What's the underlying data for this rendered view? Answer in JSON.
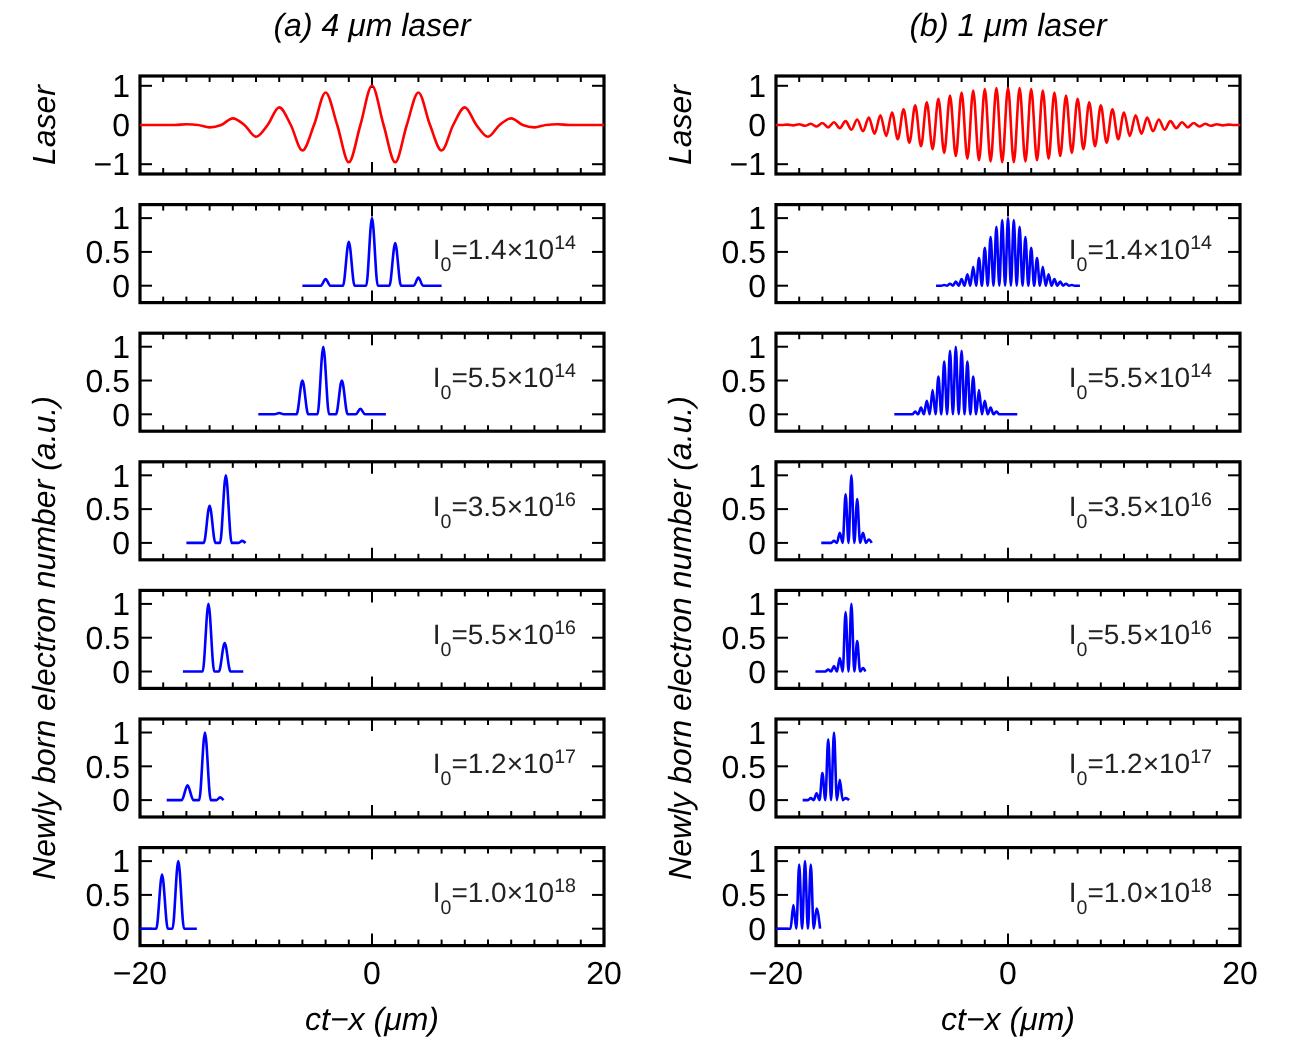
{
  "chart_data": [
    {
      "type": "line",
      "title": "(a) 4 μm laser",
      "ylabel": "Laser",
      "tick_labels": "y",
      "xlim": [
        -20,
        20
      ],
      "ylim": [
        -1.25,
        1.25
      ],
      "yticks": [
        -1,
        0,
        1
      ],
      "xticks": [
        -20,
        {
          "value": -18,
          "label": null
        },
        {
          "value": -16,
          "label": null
        },
        {
          "value": -14,
          "label": null
        },
        {
          "value": -12,
          "label": null
        },
        {
          "value": -10,
          "label": null
        },
        {
          "value": -8,
          "label": null
        },
        {
          "value": -6,
          "label": null
        },
        {
          "value": -4,
          "label": null
        },
        {
          "value": -2,
          "label": null
        },
        0,
        {
          "value": 2,
          "label": null
        },
        {
          "value": 4,
          "label": null
        },
        {
          "value": 6,
          "label": null
        },
        {
          "value": 8,
          "label": null
        },
        {
          "value": 10,
          "label": null
        },
        {
          "value": 12,
          "label": null
        },
        {
          "value": 14,
          "label": null
        },
        {
          "value": 16,
          "label": null
        },
        {
          "value": 18,
          "label": null
        },
        20
      ],
      "series": [
        {
          "color": "#ff0000",
          "x": [
            -20,
            -19,
            -18,
            -17,
            -16,
            -15,
            -14,
            -13,
            -12,
            -11,
            -10,
            -9,
            -8,
            -7,
            -6,
            -5,
            -4,
            -3,
            -2,
            -1,
            0,
            1,
            2,
            3,
            4,
            5,
            6,
            7,
            8,
            9,
            10,
            11,
            12,
            13,
            14,
            15,
            16,
            17,
            18,
            19,
            20
          ],
          "values": [
            0,
            0,
            0,
            0,
            0.02,
            0,
            -0.06,
            0,
            0.17,
            0,
            -0.3,
            0,
            0.45,
            0,
            -0.65,
            0,
            0.83,
            0,
            -0.95,
            0,
            1,
            0,
            -0.95,
            0,
            0.83,
            0,
            -0.65,
            0,
            0.45,
            0,
            -0.3,
            0,
            0.17,
            0,
            -0.06,
            0,
            0.02,
            0,
            0,
            0,
            0
          ]
        }
      ]
    },
    {
      "type": "line",
      "tick_labels": "y",
      "annotations": [
        "I$_{0}$=1.4×10$^{14}$"
      ],
      "xlim": [
        -20,
        20
      ],
      "ylim": [
        -0.25,
        1.2
      ],
      "yticks": [
        0,
        0.5,
        1
      ],
      "xticks": [
        -20,
        {
          "value": -18,
          "label": null
        },
        {
          "value": -16,
          "label": null
        },
        {
          "value": -14,
          "label": null
        },
        {
          "value": -12,
          "label": null
        },
        {
          "value": -10,
          "label": null
        },
        {
          "value": -8,
          "label": null
        },
        {
          "value": -6,
          "label": null
        },
        {
          "value": -4,
          "label": null
        },
        {
          "value": -2,
          "label": null
        },
        0,
        {
          "value": 2,
          "label": null
        },
        {
          "value": 4,
          "label": null
        },
        {
          "value": 6,
          "label": null
        },
        {
          "value": 8,
          "label": null
        },
        {
          "value": 10,
          "label": null
        },
        {
          "value": 12,
          "label": null
        },
        {
          "value": 14,
          "label": null
        },
        {
          "value": 16,
          "label": null
        },
        {
          "value": 18,
          "label": null
        },
        20
      ],
      "series": [
        {
          "color": "#0000ff",
          "x": [
            -6,
            -4.4,
            -4,
            -3.6,
            -2.5,
            -2,
            -1.5,
            -0.5,
            0,
            0.5,
            1.5,
            2,
            2.5,
            3.6,
            4,
            4.4,
            6
          ],
          "values": [
            0,
            0,
            0.1,
            0,
            0,
            0.65,
            0,
            0,
            1,
            0,
            0,
            0.63,
            0,
            0,
            0.12,
            0,
            0
          ]
        }
      ]
    },
    {
      "type": "line",
      "tick_labels": "y",
      "annotations": [
        "I$_{0}$=5.5×10$^{14}$"
      ],
      "xlim": [
        -20,
        20
      ],
      "ylim": [
        -0.25,
        1.2
      ],
      "yticks": [
        0,
        0.5,
        1
      ],
      "xticks": [
        -20,
        {
          "value": -18,
          "label": null
        },
        {
          "value": -16,
          "label": null
        },
        {
          "value": -14,
          "label": null
        },
        {
          "value": -12,
          "label": null
        },
        {
          "value": -10,
          "label": null
        },
        {
          "value": -8,
          "label": null
        },
        {
          "value": -6,
          "label": null
        },
        {
          "value": -4,
          "label": null
        },
        {
          "value": -2,
          "label": null
        },
        0,
        {
          "value": 2,
          "label": null
        },
        {
          "value": 4,
          "label": null
        },
        {
          "value": 6,
          "label": null
        },
        {
          "value": 8,
          "label": null
        },
        {
          "value": 10,
          "label": null
        },
        {
          "value": 12,
          "label": null
        },
        {
          "value": 14,
          "label": null
        },
        {
          "value": 16,
          "label": null
        },
        {
          "value": 18,
          "label": null
        },
        20
      ],
      "series": [
        {
          "color": "#0000ff",
          "x": [
            -9.8,
            -8.4,
            -8,
            -7.6,
            -6.5,
            -6,
            -5.5,
            -4.7,
            -4.2,
            -3.7,
            -3.1,
            -2.6,
            -2.1,
            -1.4,
            -1,
            -0.6,
            1.2
          ],
          "values": [
            0,
            0,
            0.02,
            0,
            0,
            0.5,
            0,
            0,
            1,
            0,
            0,
            0.5,
            0,
            0,
            0.08,
            0,
            0
          ]
        }
      ]
    },
    {
      "type": "line",
      "tick_labels": "y",
      "ylabel": "Newly born electron number (a.u.)",
      "annotations": [
        "I$_{0}$=3.5×10$^{16}$"
      ],
      "xlim": [
        -20,
        20
      ],
      "ylim": [
        -0.25,
        1.2
      ],
      "yticks": [
        0,
        0.5,
        1
      ],
      "xticks": [
        -20,
        {
          "value": -18,
          "label": null
        },
        {
          "value": -16,
          "label": null
        },
        {
          "value": -14,
          "label": null
        },
        {
          "value": -12,
          "label": null
        },
        {
          "value": -10,
          "label": null
        },
        {
          "value": -8,
          "label": null
        },
        {
          "value": -6,
          "label": null
        },
        {
          "value": -4,
          "label": null
        },
        {
          "value": -2,
          "label": null
        },
        0,
        {
          "value": 2,
          "label": null
        },
        {
          "value": 4,
          "label": null
        },
        {
          "value": 6,
          "label": null
        },
        {
          "value": 8,
          "label": null
        },
        {
          "value": 10,
          "label": null
        },
        {
          "value": 12,
          "label": null
        },
        {
          "value": 14,
          "label": null
        },
        {
          "value": 16,
          "label": null
        },
        {
          "value": 18,
          "label": null
        },
        20
      ],
      "series": [
        {
          "color": "#0000ff",
          "x": [
            -16,
            -14.5,
            -14,
            -13.5,
            -13.1,
            -12.6,
            -12.1,
            -11.5,
            -11.2,
            -10.9
          ],
          "values": [
            0,
            0,
            0.55,
            0,
            0,
            1,
            0,
            0,
            0.03,
            0
          ]
        }
      ]
    },
    {
      "type": "line",
      "tick_labels": "y",
      "annotations": [
        "I$_{0}$=5.5×10$^{16}$"
      ],
      "xlim": [
        -20,
        20
      ],
      "ylim": [
        -0.25,
        1.2
      ],
      "yticks": [
        0,
        0.5,
        1
      ],
      "xticks": [
        -20,
        {
          "value": -18,
          "label": null
        },
        {
          "value": -16,
          "label": null
        },
        {
          "value": -14,
          "label": null
        },
        {
          "value": -12,
          "label": null
        },
        {
          "value": -10,
          "label": null
        },
        {
          "value": -8,
          "label": null
        },
        {
          "value": -6,
          "label": null
        },
        {
          "value": -4,
          "label": null
        },
        {
          "value": -2,
          "label": null
        },
        0,
        {
          "value": 2,
          "label": null
        },
        {
          "value": 4,
          "label": null
        },
        {
          "value": 6,
          "label": null
        },
        {
          "value": 8,
          "label": null
        },
        {
          "value": 10,
          "label": null
        },
        {
          "value": 12,
          "label": null
        },
        {
          "value": 14,
          "label": null
        },
        {
          "value": 16,
          "label": null
        },
        {
          "value": 18,
          "label": null
        },
        20
      ],
      "series": [
        {
          "color": "#0000ff",
          "x": [
            -16.3,
            -14.6,
            -14.1,
            -13.6,
            -13.2,
            -12.7,
            -12.2,
            -11.1
          ],
          "values": [
            0,
            0,
            1,
            0,
            0,
            0.42,
            0,
            0
          ]
        }
      ]
    },
    {
      "type": "line",
      "tick_labels": "y",
      "annotations": [
        "I$_{0}$=1.2×10$^{17}$"
      ],
      "xlim": [
        -20,
        20
      ],
      "ylim": [
        -0.25,
        1.2
      ],
      "yticks": [
        0,
        0.5,
        1
      ],
      "xticks": [
        -20,
        {
          "value": -18,
          "label": null
        },
        {
          "value": -16,
          "label": null
        },
        {
          "value": -14,
          "label": null
        },
        {
          "value": -12,
          "label": null
        },
        {
          "value": -10,
          "label": null
        },
        {
          "value": -8,
          "label": null
        },
        {
          "value": -6,
          "label": null
        },
        {
          "value": -4,
          "label": null
        },
        {
          "value": -2,
          "label": null
        },
        0,
        {
          "value": 2,
          "label": null
        },
        {
          "value": 4,
          "label": null
        },
        {
          "value": 6,
          "label": null
        },
        {
          "value": 8,
          "label": null
        },
        {
          "value": 10,
          "label": null
        },
        {
          "value": 12,
          "label": null
        },
        {
          "value": 14,
          "label": null
        },
        {
          "value": 16,
          "label": null
        },
        {
          "value": 18,
          "label": null
        },
        20
      ],
      "series": [
        {
          "color": "#0000ff",
          "x": [
            -17.7,
            -16.4,
            -15.9,
            -15.4,
            -14.9,
            -14.4,
            -13.9,
            -13.4,
            -13.1,
            -12.8
          ],
          "values": [
            0,
            0,
            0.22,
            0,
            0,
            1,
            0,
            0,
            0.04,
            0
          ]
        }
      ]
    },
    {
      "type": "line",
      "xlabel": "ct−x (μm)",
      "annotations": [
        "I$_{0}$=1.0×10$^{18}$"
      ],
      "xlim": [
        -20,
        20
      ],
      "ylim": [
        -0.25,
        1.2
      ],
      "yticks": [
        0,
        0.5,
        1
      ],
      "xticks": [
        -20,
        {
          "value": -18,
          "label": null
        },
        {
          "value": -16,
          "label": null
        },
        {
          "value": -14,
          "label": null
        },
        {
          "value": -12,
          "label": null
        },
        {
          "value": -10,
          "label": null
        },
        {
          "value": -8,
          "label": null
        },
        {
          "value": -6,
          "label": null
        },
        {
          "value": -4,
          "label": null
        },
        {
          "value": -2,
          "label": null
        },
        0,
        {
          "value": 2,
          "label": null
        },
        {
          "value": 4,
          "label": null
        },
        {
          "value": 6,
          "label": null
        },
        {
          "value": 8,
          "label": null
        },
        {
          "value": 10,
          "label": null
        },
        {
          "value": 12,
          "label": null
        },
        {
          "value": 14,
          "label": null
        },
        {
          "value": 16,
          "label": null
        },
        {
          "value": 18,
          "label": null
        },
        20
      ],
      "series": [
        {
          "color": "#0000ff",
          "x": [
            -20,
            -18.6,
            -18.1,
            -17.6,
            -17.2,
            -16.7,
            -16.2,
            -15.1
          ],
          "values": [
            0,
            0,
            0.8,
            0,
            0,
            1,
            0,
            0
          ]
        }
      ]
    },
    {
      "type": "line",
      "title": "(b) 1 μm laser",
      "ylabel": "Laser",
      "tick_labels": "y",
      "xlim": [
        -20,
        20
      ],
      "ylim": [
        -1.25,
        1.25
      ],
      "yticks": [
        -1,
        0,
        1
      ],
      "xticks": [
        -20,
        {
          "value": -18,
          "label": null
        },
        {
          "value": -16,
          "label": null
        },
        {
          "value": -14,
          "label": null
        },
        {
          "value": -12,
          "label": null
        },
        {
          "value": -10,
          "label": null
        },
        {
          "value": -8,
          "label": null
        },
        {
          "value": -6,
          "label": null
        },
        {
          "value": -4,
          "label": null
        },
        {
          "value": -2,
          "label": null
        },
        0,
        {
          "value": 2,
          "label": null
        },
        {
          "value": 4,
          "label": null
        },
        {
          "value": 6,
          "label": null
        },
        {
          "value": 8,
          "label": null
        },
        {
          "value": 10,
          "label": null
        },
        {
          "value": 12,
          "label": null
        },
        {
          "value": 14,
          "label": null
        },
        {
          "value": 16,
          "label": null
        },
        {
          "value": 18,
          "label": null
        },
        20
      ],
      "series": [
        {
          "color": "#ff0000",
          "x": [
            -20,
            -19.5,
            -19,
            -18.5,
            -18,
            -17.5,
            -17,
            -16.5,
            -16,
            -15.5,
            -15,
            -14.5,
            -14,
            -13.5,
            -13,
            -12.5,
            -12,
            -11.5,
            -11,
            -10.5,
            -10,
            -9.5,
            -9,
            -8.5,
            -8,
            -7.5,
            -7,
            -6.5,
            -6,
            -5.5,
            -5,
            -4.5,
            -4,
            -3.5,
            -3,
            -2.5,
            -2,
            -1.5,
            -1,
            -0.5,
            0,
            0.5,
            1,
            1.5,
            2,
            2.5,
            3,
            3.5,
            4,
            4.5,
            5,
            5.5,
            6,
            6.5,
            7,
            7.5,
            8,
            8.5,
            9,
            9.5,
            10,
            10.5,
            11,
            11.5,
            12,
            12.5,
            13,
            13.5,
            14,
            14.5,
            15,
            15.5,
            16,
            16.5,
            17,
            17.5,
            18,
            18.5,
            19,
            19.5,
            20
          ],
          "values": [
            0,
            0,
            0.01,
            -0.01,
            0.02,
            -0.02,
            0.03,
            -0.04,
            0.05,
            -0.06,
            0.07,
            -0.08,
            0.1,
            -0.12,
            0.14,
            -0.16,
            0.19,
            -0.22,
            0.25,
            -0.28,
            0.32,
            -0.36,
            0.4,
            -0.45,
            0.5,
            -0.54,
            0.58,
            -0.62,
            0.67,
            -0.71,
            0.75,
            -0.79,
            0.83,
            -0.86,
            0.88,
            -0.9,
            0.92,
            -0.93,
            0.94,
            -0.95,
            0.95,
            -0.95,
            0.94,
            -0.93,
            0.92,
            -0.9,
            0.88,
            -0.86,
            0.83,
            -0.79,
            0.75,
            -0.71,
            0.67,
            -0.62,
            0.58,
            -0.54,
            0.5,
            -0.45,
            0.4,
            -0.36,
            0.32,
            -0.28,
            0.25,
            -0.22,
            0.19,
            -0.16,
            0.14,
            -0.12,
            0.1,
            -0.08,
            0.07,
            -0.06,
            0.05,
            -0.04,
            0.03,
            -0.02,
            0.02,
            -0.01,
            0.01,
            0,
            0
          ]
        }
      ]
    },
    {
      "type": "line",
      "tick_labels": "y",
      "annotations": [
        "I$_{0}$=1.4×10$^{14}$"
      ],
      "xlim": [
        -20,
        20
      ],
      "ylim": [
        -0.25,
        1.2
      ],
      "yticks": [
        0,
        0.5,
        1
      ],
      "xticks": [
        -20,
        {
          "value": -18,
          "label": null
        },
        {
          "value": -16,
          "label": null
        },
        {
          "value": -14,
          "label": null
        },
        {
          "value": -12,
          "label": null
        },
        {
          "value": -10,
          "label": null
        },
        {
          "value": -8,
          "label": null
        },
        {
          "value": -6,
          "label": null
        },
        {
          "value": -4,
          "label": null
        },
        {
          "value": -2,
          "label": null
        },
        0,
        {
          "value": 2,
          "label": null
        },
        {
          "value": 4,
          "label": null
        },
        {
          "value": 6,
          "label": null
        },
        {
          "value": 8,
          "label": null
        },
        {
          "value": 10,
          "label": null
        },
        {
          "value": 12,
          "label": null
        },
        {
          "value": 14,
          "label": null
        },
        {
          "value": 16,
          "label": null
        },
        {
          "value": 18,
          "label": null
        },
        20
      ],
      "series": [
        {
          "color": "#0000ff",
          "x": [
            -6.2,
            -5.75,
            -5.5,
            -5.25,
            -5,
            -4.75,
            -4.5,
            -4.25,
            -4,
            -3.75,
            -3.5,
            -3.25,
            -3,
            -2.75,
            -2.5,
            -2.25,
            -2,
            -1.75,
            -1.5,
            -1.25,
            -1,
            -0.75,
            -0.5,
            -0.25,
            0,
            0.25,
            0.5,
            0.75,
            1,
            1.25,
            1.5,
            1.75,
            2,
            2.25,
            2.5,
            2.75,
            3,
            3.25,
            3.5,
            3.75,
            4,
            4.25,
            4.5,
            4.75,
            5,
            5.25,
            5.5,
            5.75,
            6.2
          ],
          "values": [
            0,
            0,
            0.01,
            0,
            0.03,
            0,
            0.06,
            0,
            0.1,
            0,
            0.17,
            0,
            0.28,
            0,
            0.41,
            0,
            0.56,
            0,
            0.72,
            0,
            0.87,
            0,
            0.97,
            0,
            1,
            0,
            0.97,
            0,
            0.87,
            0,
            0.72,
            0,
            0.56,
            0,
            0.41,
            0,
            0.28,
            0,
            0.17,
            0,
            0.1,
            0,
            0.06,
            0,
            0.03,
            0,
            0.01,
            0,
            0
          ]
        }
      ]
    },
    {
      "type": "line",
      "tick_labels": "y",
      "annotations": [
        "I$_{0}$=5.5×10$^{14}$"
      ],
      "xlim": [
        -20,
        20
      ],
      "ylim": [
        -0.25,
        1.2
      ],
      "yticks": [
        0,
        0.5,
        1
      ],
      "xticks": [
        -20,
        {
          "value": -18,
          "label": null
        },
        {
          "value": -16,
          "label": null
        },
        {
          "value": -14,
          "label": null
        },
        {
          "value": -12,
          "label": null
        },
        {
          "value": -10,
          "label": null
        },
        {
          "value": -8,
          "label": null
        },
        {
          "value": -6,
          "label": null
        },
        {
          "value": -4,
          "label": null
        },
        {
          "value": -2,
          "label": null
        },
        0,
        {
          "value": 2,
          "label": null
        },
        {
          "value": 4,
          "label": null
        },
        {
          "value": 6,
          "label": null
        },
        {
          "value": 8,
          "label": null
        },
        {
          "value": 10,
          "label": null
        },
        {
          "value": 12,
          "label": null
        },
        {
          "value": 14,
          "label": null
        },
        {
          "value": 16,
          "label": null
        },
        {
          "value": 18,
          "label": null
        },
        20
      ],
      "series": [
        {
          "color": "#0000ff",
          "x": [
            -9.8,
            -8.25,
            -8,
            -7.75,
            -7.5,
            -7.25,
            -7,
            -6.75,
            -6.5,
            -6.25,
            -6,
            -5.75,
            -5.5,
            -5.25,
            -5,
            -4.75,
            -4.5,
            -4.25,
            -4,
            -3.75,
            -3.5,
            -3.25,
            -3,
            -2.75,
            -2.5,
            -2.25,
            -2,
            -1.75,
            -1.5,
            -1.25,
            -1,
            -0.75,
            0.8
          ],
          "values": [
            0,
            0,
            0.04,
            0,
            0.1,
            0,
            0.2,
            0,
            0.36,
            0,
            0.56,
            0,
            0.78,
            0,
            0.94,
            0,
            1,
            0,
            0.94,
            0,
            0.78,
            0,
            0.56,
            0,
            0.36,
            0,
            0.2,
            0,
            0.1,
            0,
            0.04,
            0,
            0
          ]
        }
      ]
    },
    {
      "type": "line",
      "tick_labels": "y",
      "ylabel": "Newly born electron number (a.u.)",
      "annotations": [
        "I$_{0}$=3.5×10$^{16}$"
      ],
      "xlim": [
        -20,
        20
      ],
      "ylim": [
        -0.25,
        1.2
      ],
      "yticks": [
        0,
        0.5,
        1
      ],
      "xticks": [
        -20,
        {
          "value": -18,
          "label": null
        },
        {
          "value": -16,
          "label": null
        },
        {
          "value": -14,
          "label": null
        },
        {
          "value": -12,
          "label": null
        },
        {
          "value": -10,
          "label": null
        },
        {
          "value": -8,
          "label": null
        },
        {
          "value": -6,
          "label": null
        },
        {
          "value": -4,
          "label": null
        },
        {
          "value": -2,
          "label": null
        },
        0,
        {
          "value": 2,
          "label": null
        },
        {
          "value": 4,
          "label": null
        },
        {
          "value": 6,
          "label": null
        },
        {
          "value": 8,
          "label": null
        },
        {
          "value": 10,
          "label": null
        },
        {
          "value": 12,
          "label": null
        },
        {
          "value": 14,
          "label": null
        },
        {
          "value": 16,
          "label": null
        },
        {
          "value": 18,
          "label": null
        },
        20
      ],
      "series": [
        {
          "color": "#0000ff",
          "x": [
            -16.1,
            -15.25,
            -15,
            -14.75,
            -14.5,
            -14.25,
            -14,
            -13.75,
            -13.5,
            -13.25,
            -13,
            -12.75,
            -12.5,
            -12.25,
            -12,
            -11.75
          ],
          "values": [
            0,
            0,
            0.03,
            0,
            0.15,
            0,
            0.72,
            0,
            1,
            0,
            0.65,
            0,
            0.15,
            0,
            0.05,
            0
          ]
        }
      ]
    },
    {
      "type": "line",
      "tick_labels": "y",
      "annotations": [
        "I$_{0}$=5.5×10$^{16}$"
      ],
      "xlim": [
        -20,
        20
      ],
      "ylim": [
        -0.25,
        1.2
      ],
      "yticks": [
        0,
        0.5,
        1
      ],
      "xticks": [
        -20,
        {
          "value": -18,
          "label": null
        },
        {
          "value": -16,
          "label": null
        },
        {
          "value": -14,
          "label": null
        },
        {
          "value": -12,
          "label": null
        },
        {
          "value": -10,
          "label": null
        },
        {
          "value": -8,
          "label": null
        },
        {
          "value": -6,
          "label": null
        },
        {
          "value": -4,
          "label": null
        },
        {
          "value": -2,
          "label": null
        },
        0,
        {
          "value": 2,
          "label": null
        },
        {
          "value": 4,
          "label": null
        },
        {
          "value": 6,
          "label": null
        },
        {
          "value": 8,
          "label": null
        },
        {
          "value": 10,
          "label": null
        },
        {
          "value": 12,
          "label": null
        },
        {
          "value": 14,
          "label": null
        },
        {
          "value": 16,
          "label": null
        },
        {
          "value": 18,
          "label": null
        },
        20
      ],
      "series": [
        {
          "color": "#0000ff",
          "x": [
            -16.6,
            -15.75,
            -15.5,
            -15.25,
            -15,
            -14.75,
            -14.5,
            -14.25,
            -14,
            -13.75,
            -13.5,
            -13.25,
            -13,
            -12.75,
            -12.5,
            -12.3
          ],
          "values": [
            0,
            0,
            0.03,
            0,
            0.08,
            0,
            0.2,
            0,
            0.88,
            0,
            1,
            0,
            0.45,
            0,
            0.05,
            0
          ]
        }
      ]
    },
    {
      "type": "line",
      "tick_labels": "y",
      "annotations": [
        "I$_{0}$=1.2×10$^{17}$"
      ],
      "xlim": [
        -20,
        20
      ],
      "ylim": [
        -0.25,
        1.2
      ],
      "yticks": [
        0,
        0.5,
        1
      ],
      "xticks": [
        -20,
        {
          "value": -18,
          "label": null
        },
        {
          "value": -16,
          "label": null
        },
        {
          "value": -14,
          "label": null
        },
        {
          "value": -12,
          "label": null
        },
        {
          "value": -10,
          "label": null
        },
        {
          "value": -8,
          "label": null
        },
        {
          "value": -6,
          "label": null
        },
        {
          "value": -4,
          "label": null
        },
        {
          "value": -2,
          "label": null
        },
        0,
        {
          "value": 2,
          "label": null
        },
        {
          "value": 4,
          "label": null
        },
        {
          "value": 6,
          "label": null
        },
        {
          "value": 8,
          "label": null
        },
        {
          "value": 10,
          "label": null
        },
        {
          "value": 12,
          "label": null
        },
        {
          "value": 14,
          "label": null
        },
        {
          "value": 16,
          "label": null
        },
        {
          "value": 18,
          "label": null
        },
        20
      ],
      "series": [
        {
          "color": "#0000ff",
          "x": [
            -17.7,
            -17.25,
            -17,
            -16.75,
            -16.5,
            -16.25,
            -16,
            -15.75,
            -15.5,
            -15.25,
            -15,
            -14.75,
            -14.5,
            -14.25,
            -14,
            -13.7
          ],
          "values": [
            0,
            0,
            0.03,
            0,
            0.1,
            0,
            0.4,
            0,
            0.9,
            0,
            1,
            0,
            0.3,
            0,
            0.03,
            0
          ]
        }
      ]
    },
    {
      "type": "line",
      "xlabel": "ct−x (μm)",
      "annotations": [
        "I$_{0}$=1.0×10$^{18}$"
      ],
      "xlim": [
        -20,
        20
      ],
      "ylim": [
        -0.25,
        1.2
      ],
      "yticks": [
        0,
        0.5,
        1
      ],
      "xticks": [
        -20,
        {
          "value": -18,
          "label": null
        },
        {
          "value": -16,
          "label": null
        },
        {
          "value": -14,
          "label": null
        },
        {
          "value": -12,
          "label": null
        },
        {
          "value": -10,
          "label": null
        },
        {
          "value": -8,
          "label": null
        },
        {
          "value": -6,
          "label": null
        },
        {
          "value": -4,
          "label": null
        },
        {
          "value": -2,
          "label": null
        },
        0,
        {
          "value": 2,
          "label": null
        },
        {
          "value": 4,
          "label": null
        },
        {
          "value": 6,
          "label": null
        },
        {
          "value": 8,
          "label": null
        },
        {
          "value": 10,
          "label": null
        },
        {
          "value": 12,
          "label": null
        },
        {
          "value": 14,
          "label": null
        },
        {
          "value": 16,
          "label": null
        },
        {
          "value": 18,
          "label": null
        },
        20
      ],
      "series": [
        {
          "color": "#0000ff",
          "x": [
            -20,
            -18.75,
            -18.5,
            -18.25,
            -18,
            -17.75,
            -17.5,
            -17.25,
            -17,
            -16.75,
            -16.5,
            -16.2
          ],
          "values": [
            0,
            0,
            0.35,
            0,
            0.95,
            0,
            1,
            0,
            0.95,
            0,
            0.3,
            0
          ]
        }
      ]
    }
  ]
}
